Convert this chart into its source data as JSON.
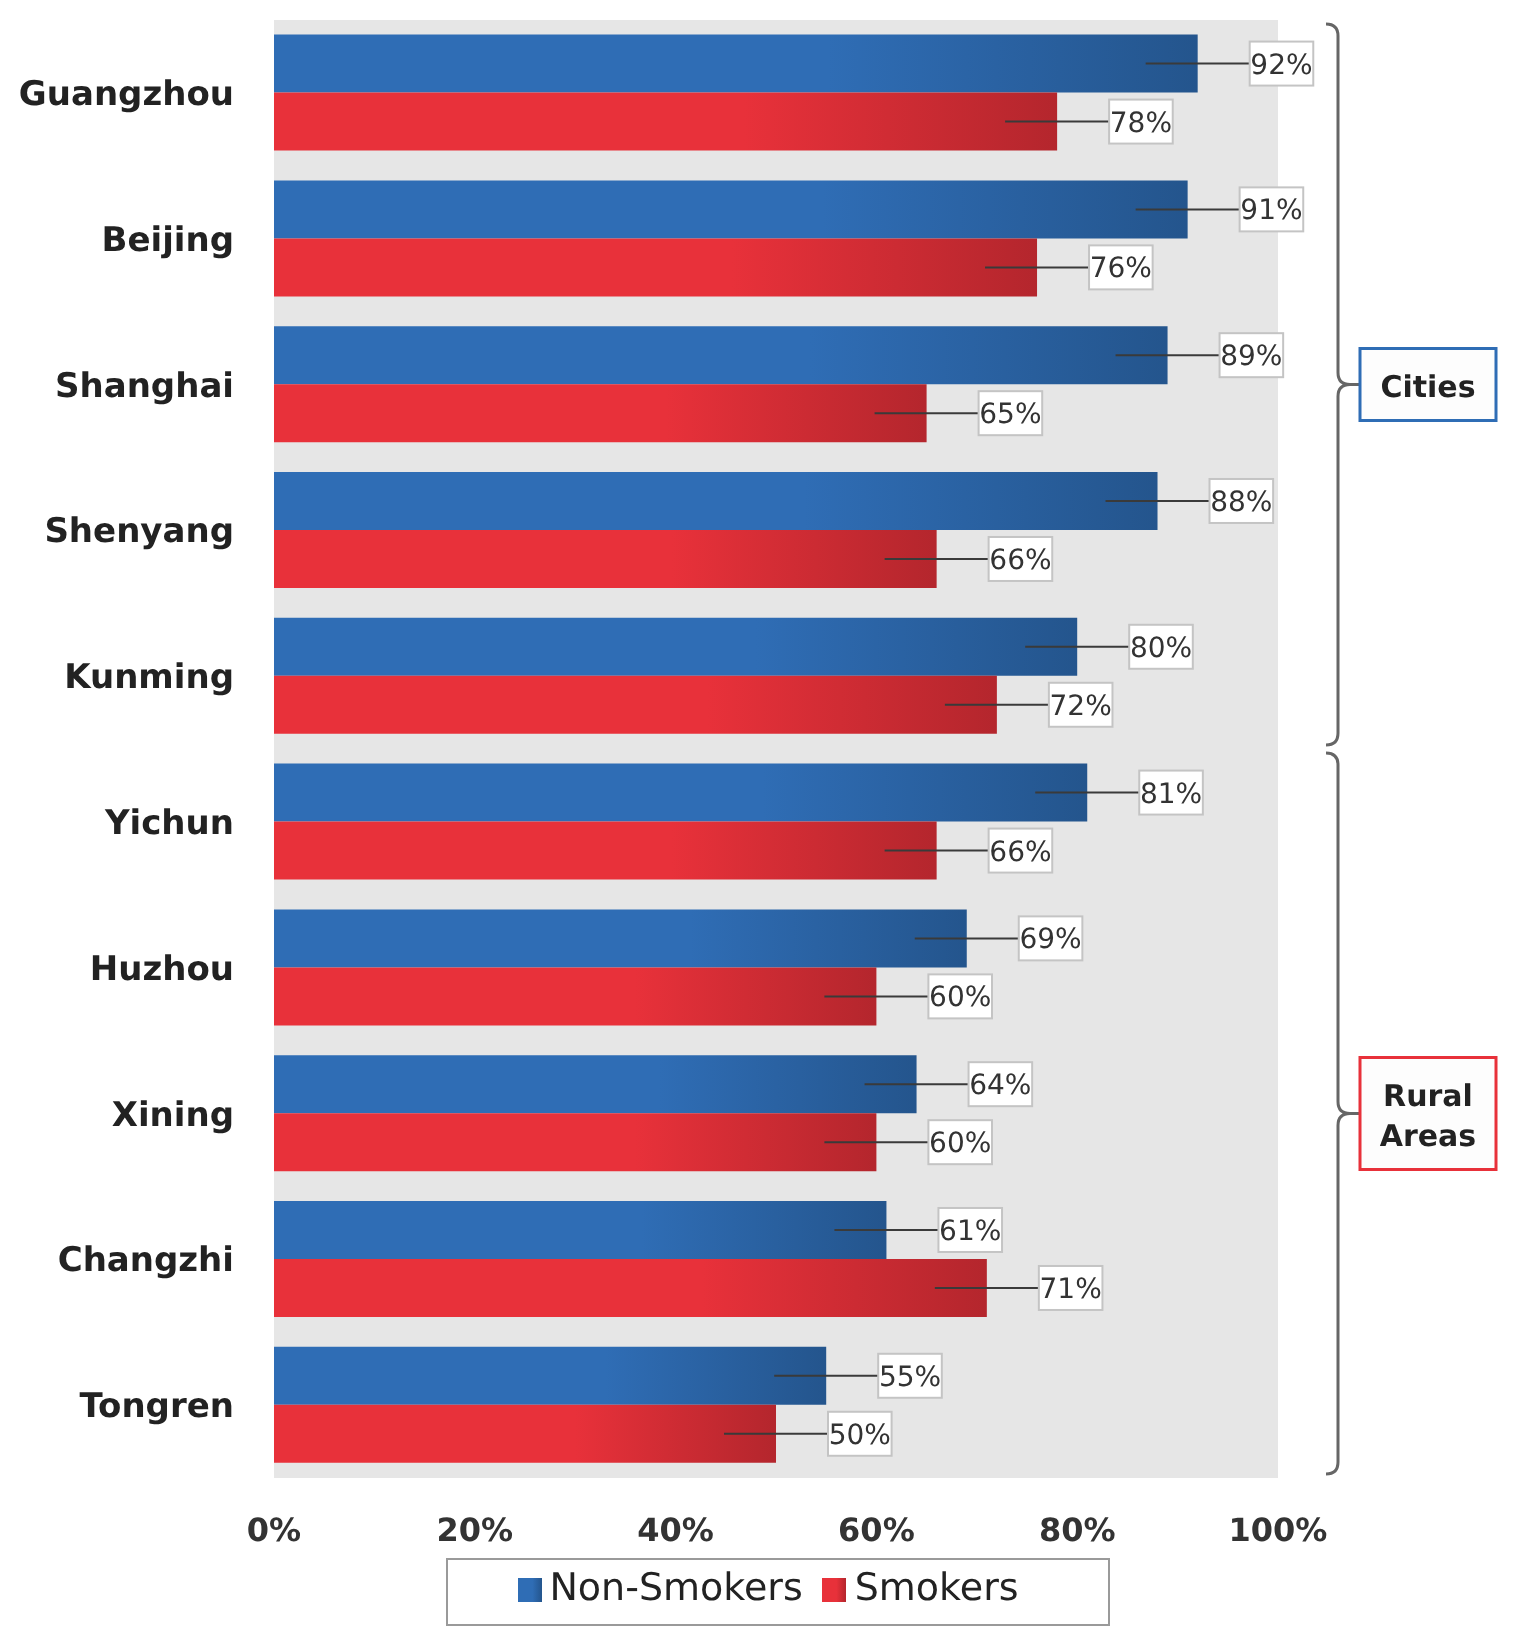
{
  "chart_data": {
    "type": "bar",
    "orientation": "horizontal",
    "categories": [
      "Guangzhou",
      "Beijing",
      "Shanghai",
      "Shenyang",
      "Kunming",
      "Yichun",
      "Huzhou",
      "Xining",
      "Changzhi",
      "Tongren"
    ],
    "series": [
      {
        "name": "Non-Smokers",
        "color": "#2f6db5",
        "values": [
          92,
          91,
          89,
          88,
          80,
          81,
          69,
          64,
          61,
          55
        ],
        "value_labels": [
          "92%",
          "91%",
          "89%",
          "88%",
          "80%",
          "81%",
          "69%",
          "64%",
          "61%",
          "55%"
        ]
      },
      {
        "name": "Smokers",
        "color": "#e8313a",
        "values": [
          78,
          76,
          65,
          66,
          72,
          66,
          60,
          60,
          71,
          50
        ],
        "value_labels": [
          "78%",
          "76%",
          "65%",
          "66%",
          "72%",
          "66%",
          "60%",
          "60%",
          "71%",
          "50%"
        ]
      }
    ],
    "xlim": [
      0,
      100
    ],
    "xticks": [
      {
        "value": 0,
        "label": "0%"
      },
      {
        "value": 20,
        "label": "20%"
      },
      {
        "value": 40,
        "label": "40%"
      },
      {
        "value": 60,
        "label": "60%"
      },
      {
        "value": 80,
        "label": "80%"
      },
      {
        "value": 100,
        "label": "100%"
      }
    ],
    "legend": "bottom",
    "annotations": [
      "Cities",
      "Rural Areas"
    ]
  }
}
